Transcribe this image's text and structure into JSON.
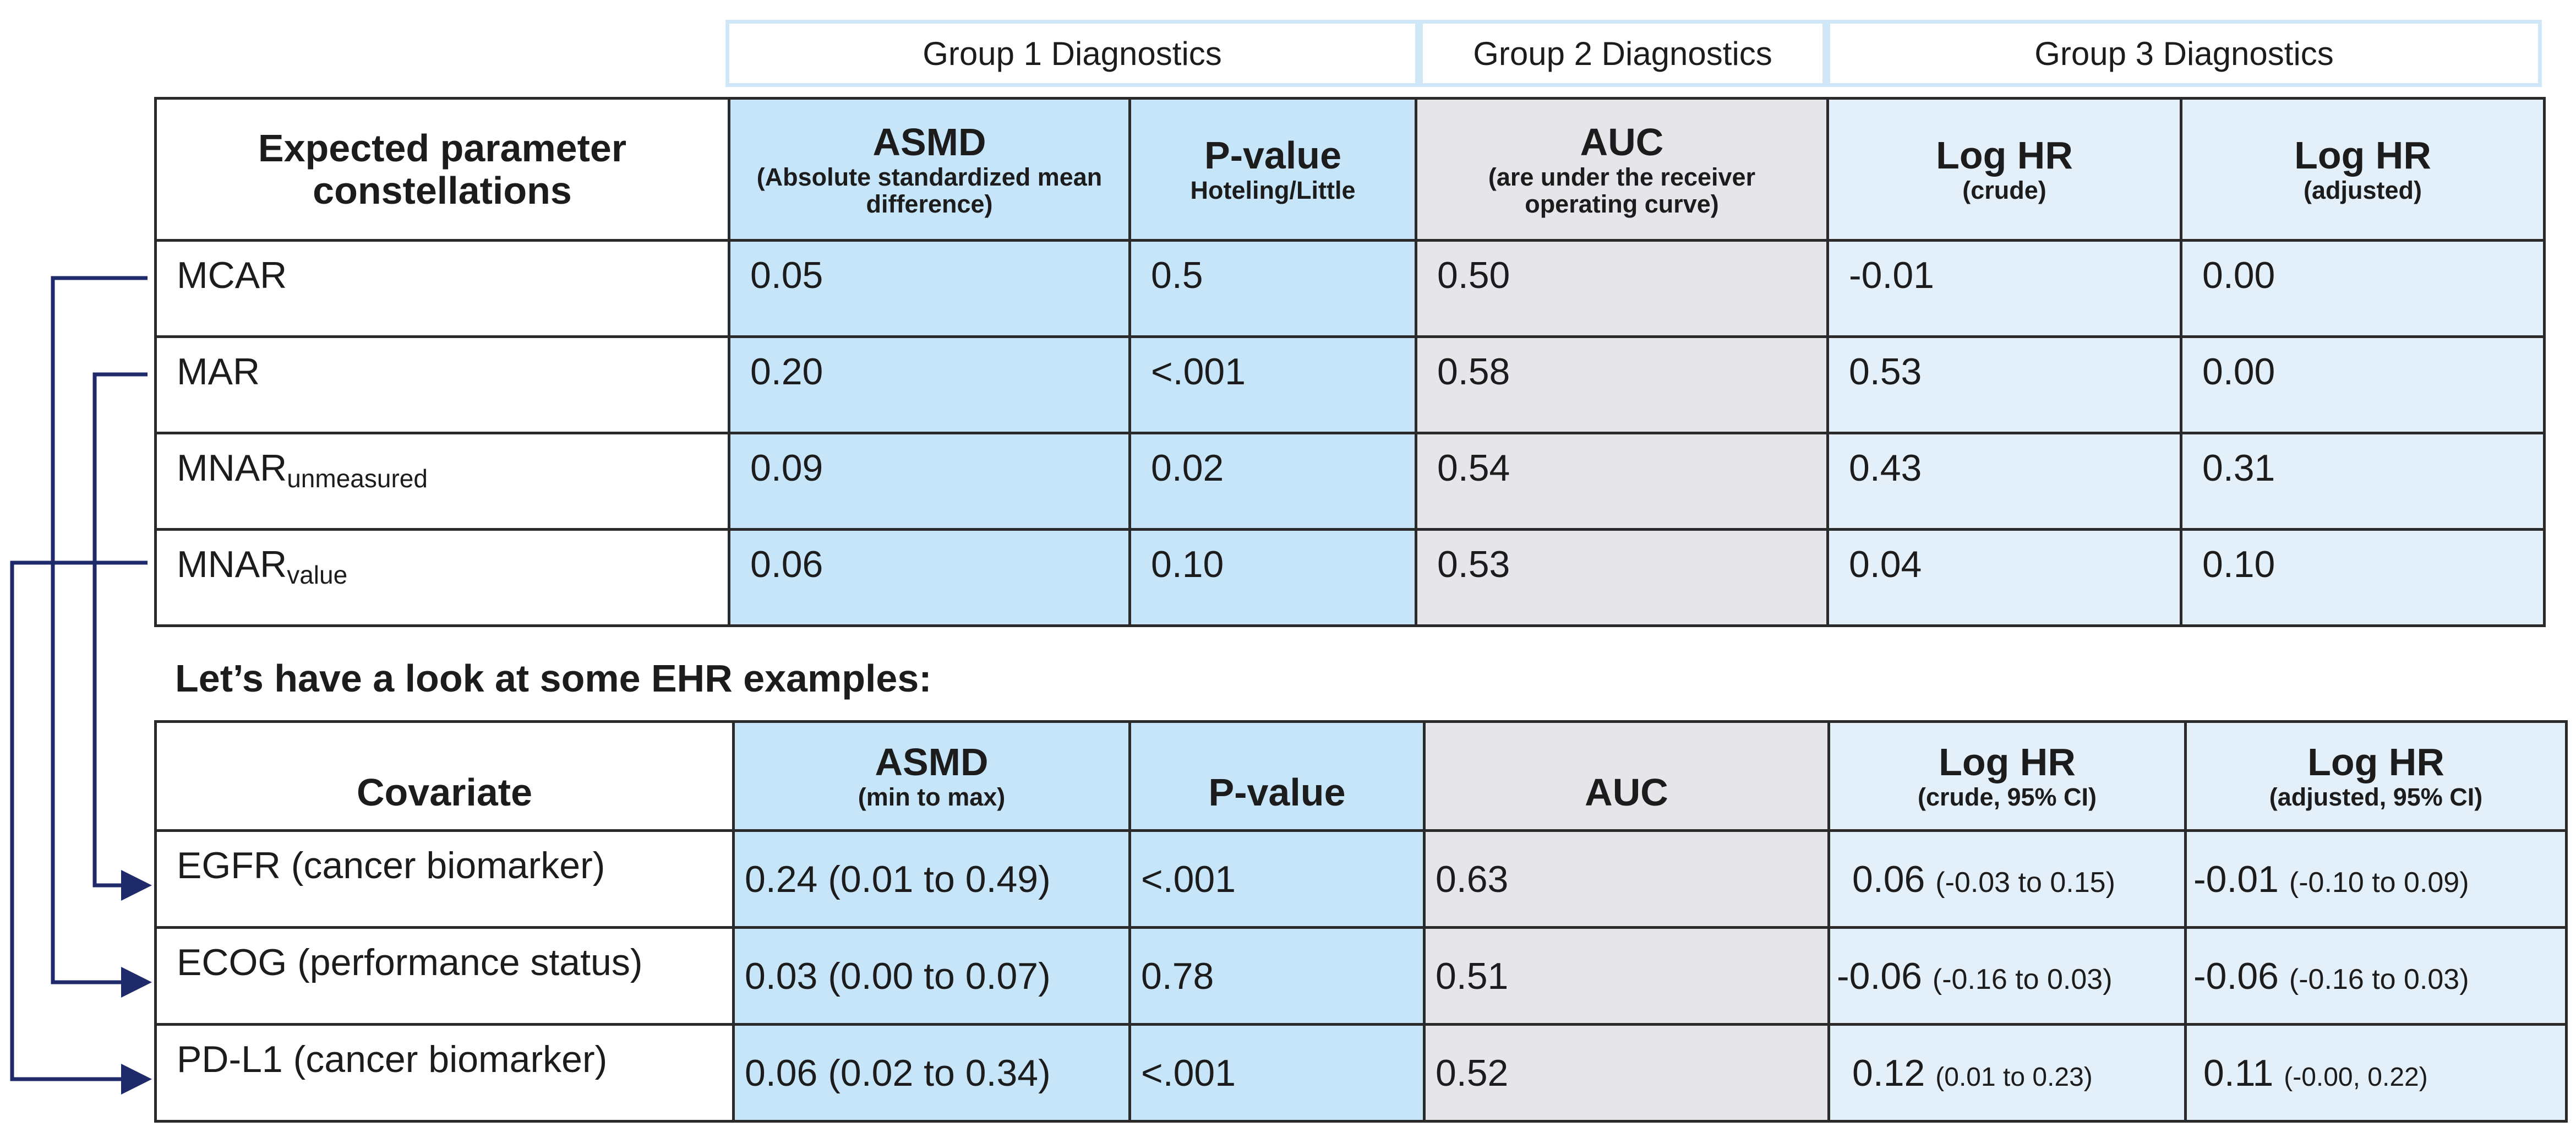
{
  "groups": {
    "g1": "Group 1 Diagnostics",
    "g2": "Group 2 Diagnostics",
    "g3": "Group 3 Diagnostics"
  },
  "table1": {
    "header": {
      "param": "Expected parameter constellations",
      "asmd_main": "ASMD",
      "asmd_sub": "(Absolute standardized mean difference)",
      "pval_main": "P-value",
      "pval_sub": "Hoteling/Little",
      "auc_main": "AUC",
      "auc_sub": "(are under the receiver operating curve)",
      "hr1_main": "Log HR",
      "hr1_sub": "(crude)",
      "hr2_main": "Log HR",
      "hr2_sub": "(adjusted)"
    },
    "rows": [
      {
        "label": "MCAR",
        "label_sub": "",
        "asmd": "0.05",
        "pval": "0.5",
        "auc": "0.50",
        "hr_crude": "-0.01",
        "hr_adj": "0.00"
      },
      {
        "label": "MAR",
        "label_sub": "",
        "asmd": "0.20",
        "pval": "<.001",
        "auc": "0.58",
        "hr_crude": "0.53",
        "hr_adj": "0.00"
      },
      {
        "label": "MNAR",
        "label_sub": "unmeasured",
        "asmd": "0.09",
        "pval": "0.02",
        "auc": "0.54",
        "hr_crude": "0.43",
        "hr_adj": "0.31"
      },
      {
        "label": "MNAR",
        "label_sub": "value",
        "asmd": "0.06",
        "pval": "0.10",
        "auc": "0.53",
        "hr_crude": "0.04",
        "hr_adj": "0.10"
      }
    ]
  },
  "section_title": "Let’s have a look at some EHR examples:",
  "table2": {
    "header": {
      "cov": "Covariate",
      "asmd_main": "ASMD",
      "asmd_sub": "(min to max)",
      "pval": "P-value",
      "auc": "AUC",
      "hr1_main": "Log HR",
      "hr1_sub": "(crude, 95% CI)",
      "hr2_main": "Log HR",
      "hr2_sub": "(adjusted, 95% CI)"
    },
    "rows": [
      {
        "label": "EGFR (cancer biomarker)",
        "asmd": "0.24",
        "asmd_ci": "(0.01 to 0.49)",
        "pval": "<.001",
        "auc": "0.63",
        "hr_crude": "0.06",
        "hr_crude_ci": "(-0.03 to 0.15)",
        "hr_adj": "-0.01",
        "hr_adj_ci": "(-0.10 to 0.09)"
      },
      {
        "label": "ECOG (performance status)",
        "asmd": "0.03",
        "asmd_ci": "(0.00 to 0.07)",
        "pval": "0.78",
        "auc": "0.51",
        "hr_crude": "-0.06",
        "hr_crude_ci": "(-0.16 to 0.03)",
        "hr_adj": "-0.06",
        "hr_adj_ci": "(-0.16 to 0.03)"
      },
      {
        "label": "PD-L1 (cancer biomarker)",
        "asmd": "0.06",
        "asmd_ci": "(0.02 to 0.34)",
        "pval": "<.001",
        "auc": "0.52",
        "hr_crude": "0.12",
        "hr_crude_ci": "(0.01 to 0.23)",
        "hr_adj": "0.11",
        "hr_adj_ci": "(-0.00, 0.22)"
      }
    ]
  },
  "colors": {
    "connector": "#1f2a6b",
    "group1_fill": "#c6e5f8",
    "group2_fill": "#e5e5ea",
    "group3_fill": "#e3eff9",
    "group_border": "#cfe7f6"
  }
}
